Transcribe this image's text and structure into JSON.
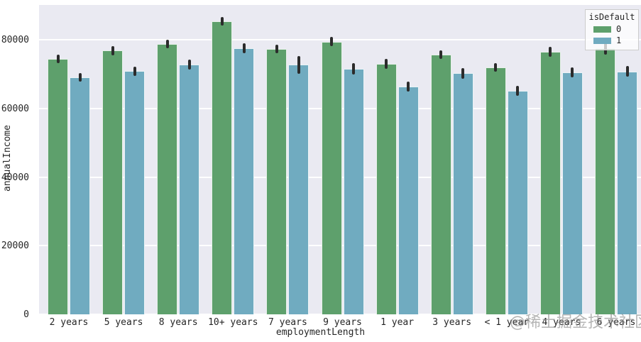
{
  "chart_data": {
    "type": "bar",
    "title": "",
    "xlabel": "employmentLength",
    "ylabel": "annualIncome",
    "ylim": [
      0,
      90200
    ],
    "yticks": [
      0,
      20000,
      40000,
      60000,
      80000
    ],
    "ytick_labels": [
      "0",
      "20000",
      "40000",
      "60000",
      "80000"
    ],
    "grid": true,
    "categories": [
      "2 years",
      "5 years",
      "8 years",
      "10+ years",
      "7 years",
      "9 years",
      "1 year",
      "3 years",
      "< 1 year",
      "4 years",
      "6 years"
    ],
    "legend": {
      "title": "isDefault",
      "position": "upper right",
      "entries": [
        {
          "label": "0",
          "color": "#5ea06c"
        },
        {
          "label": "1",
          "color": "#70abc0"
        }
      ]
    },
    "series": [
      {
        "name": "0",
        "color": "#5ea06c",
        "values": [
          74500,
          76900,
          78800,
          85400,
          77400,
          79500,
          73000,
          75800,
          72000,
          76600,
          77500
        ],
        "errors": [
          1200,
          1400,
          1200,
          1300,
          1200,
          1400,
          1400,
          1250,
          1200,
          1450,
          1800
        ]
      },
      {
        "name": "1",
        "color": "#70abc0",
        "values": [
          69100,
          70900,
          72900,
          77600,
          72800,
          71600,
          66400,
          70300,
          65200,
          70500,
          70800
        ],
        "errors": [
          1200,
          1400,
          1450,
          1500,
          2600,
          1700,
          1400,
          1550,
          1400,
          1400,
          1550
        ]
      }
    ]
  },
  "colors": {
    "plot_background": "#eaeaf2",
    "gridline": "#ffffff",
    "error_bar": "#2b2b2b",
    "tick_text": "#262626",
    "watermark": "#878787"
  },
  "watermark": "@稀土掘金技术社区"
}
